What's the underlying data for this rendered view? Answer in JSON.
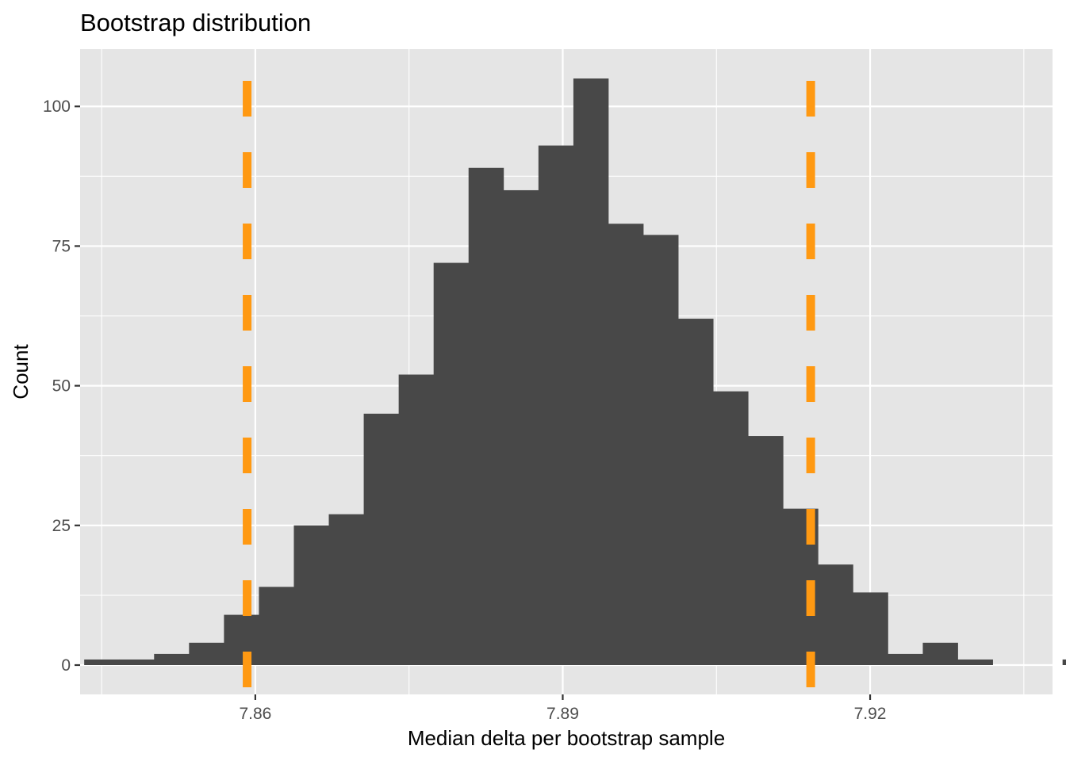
{
  "chart_data": {
    "type": "bar",
    "title": "Bootstrap distribution",
    "xlabel": "Median delta per bootstrap sample",
    "ylabel": "Count",
    "xlim": [
      7.8429,
      7.9378
    ],
    "ylim": [
      -5.25,
      110.25
    ],
    "x_ticks": [
      {
        "value": 7.86,
        "label": "7.86"
      },
      {
        "value": 7.89,
        "label": "7.89"
      },
      {
        "value": 7.92,
        "label": "7.92"
      }
    ],
    "x_minor_ticks": [
      7.845,
      7.875,
      7.905,
      7.935
    ],
    "y_ticks": [
      {
        "value": 0,
        "label": "0"
      },
      {
        "value": 25,
        "label": "25"
      },
      {
        "value": 50,
        "label": "50"
      },
      {
        "value": 75,
        "label": "75"
      },
      {
        "value": 100,
        "label": "100"
      }
    ],
    "y_minor_ticks": [
      12.5,
      37.5,
      62.5,
      87.5
    ],
    "bin_start": 7.8433,
    "bin_width": 0.00341,
    "values": [
      1,
      1,
      2,
      4,
      9,
      14,
      25,
      27,
      45,
      52,
      72,
      89,
      85,
      93,
      105,
      79,
      77,
      62,
      49,
      41,
      28,
      18,
      13,
      2,
      4,
      1,
      0,
      0,
      1,
      1
    ],
    "bar_color": "#484848",
    "panel_background": "#e5e5e5",
    "grid": true,
    "vlines": [
      {
        "x": 7.8592,
        "color": "#ff9912",
        "linetype": "dashed"
      },
      {
        "x": 7.9142,
        "color": "#ff9912",
        "linetype": "dashed"
      }
    ]
  }
}
